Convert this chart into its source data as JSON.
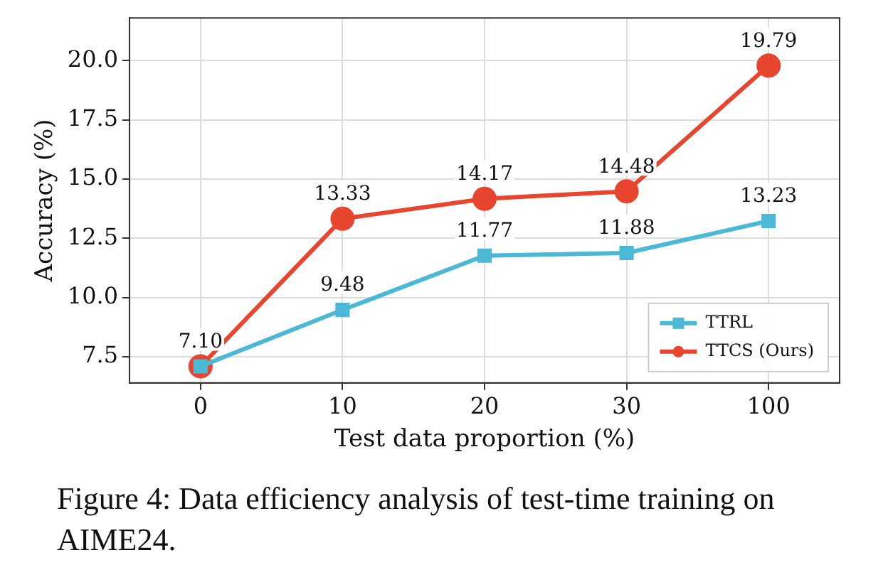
{
  "chart_data": {
    "type": "line",
    "xlabel": "Test data proportion (%)",
    "ylabel": "Accuracy (%)",
    "categories": [
      "0",
      "10",
      "20",
      "30",
      "100"
    ],
    "series": [
      {
        "name": "TTRL",
        "color": "#4bb8d5",
        "marker": "square",
        "values": [
          7.1,
          9.48,
          11.77,
          11.88,
          13.23
        ],
        "value_labels": [
          "7.10",
          "9.48",
          "11.77",
          "11.88",
          "13.23"
        ]
      },
      {
        "name": "TTCS (Ours)",
        "color": "#e8452f",
        "marker": "circle",
        "values": [
          7.1,
          13.33,
          14.17,
          14.48,
          19.79
        ],
        "value_labels": [
          null,
          "13.33",
          "14.17",
          "14.48",
          "19.79"
        ]
      }
    ],
    "ylim": [
      6.4,
      21.8
    ],
    "yticks": [
      {
        "value": 7.5,
        "label": "7.5"
      },
      {
        "value": 10,
        "label": "10.0"
      },
      {
        "value": 12.5,
        "label": "12.5"
      },
      {
        "value": 15,
        "label": "15.0"
      },
      {
        "value": 17.5,
        "label": "17.5"
      },
      {
        "value": 20,
        "label": "20.0"
      }
    ],
    "grid": true,
    "legend": "bottom right",
    "line_style": "solid",
    "annotations": [
      "Figure 4: Data efficiency analysis of test-time training on AIME24."
    ]
  }
}
